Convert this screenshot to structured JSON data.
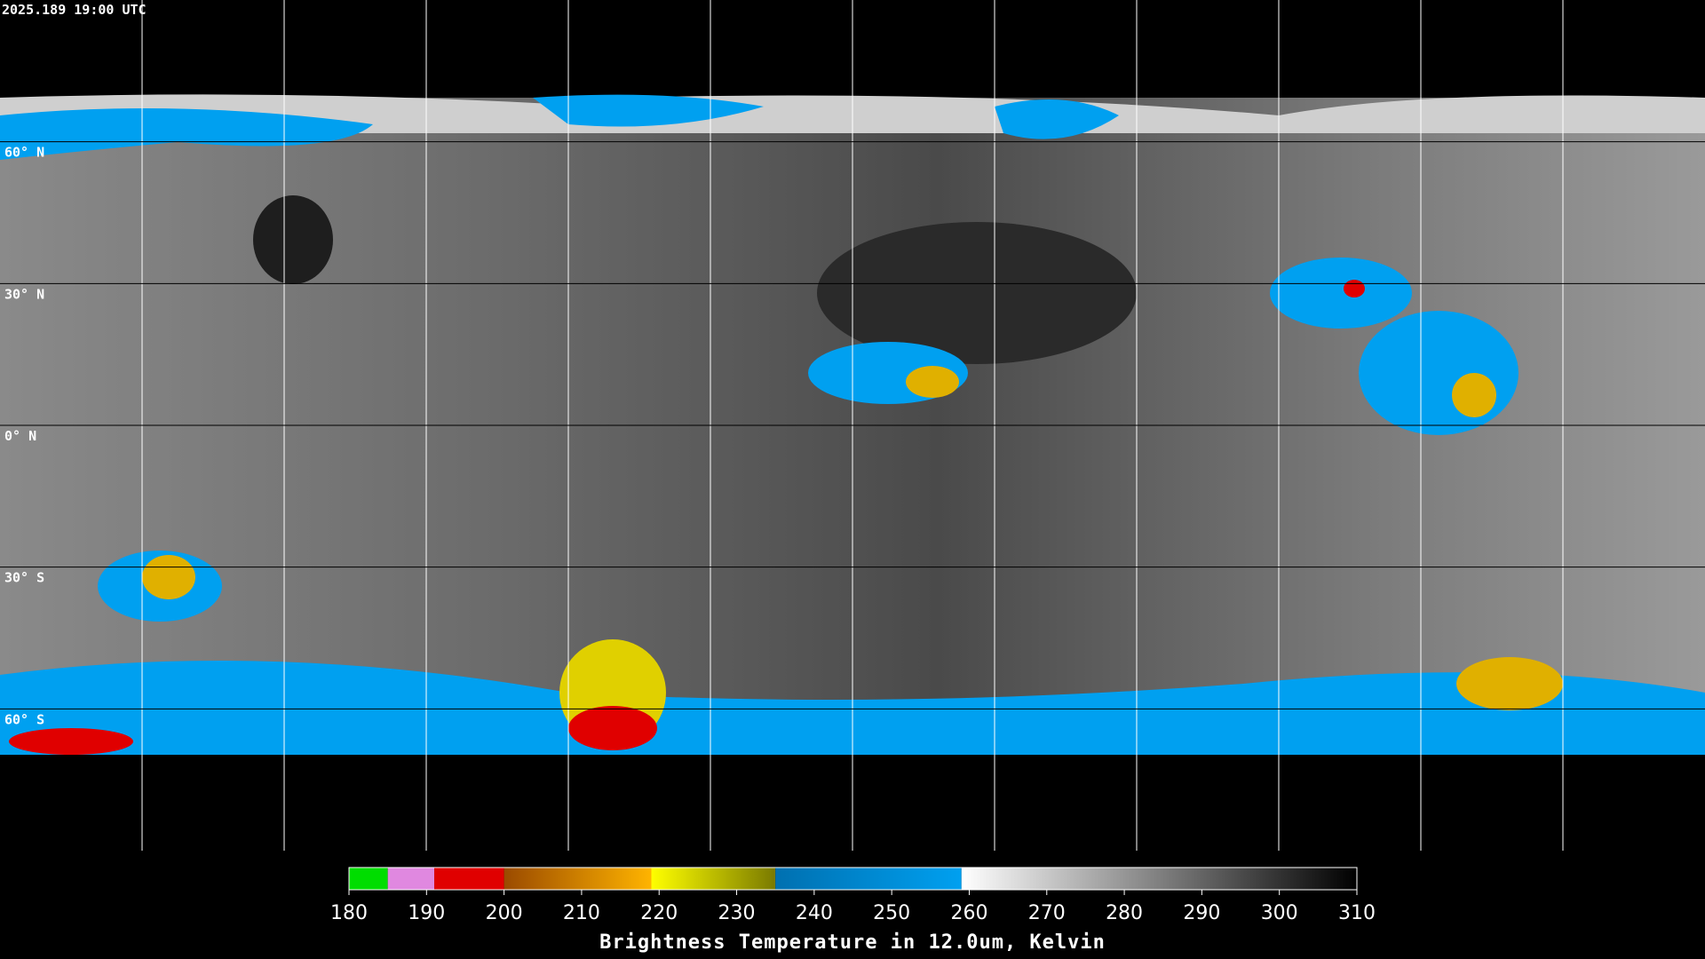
{
  "header": {
    "timestamp": "2025.189 19:00 UTC"
  },
  "map": {
    "lat_labels": [
      "60° N",
      "30° N",
      "0° N",
      "30° S",
      "60° S"
    ]
  },
  "colorbar": {
    "title": "Brightness Temperature in 12.0um, Kelvin",
    "range": [
      180,
      310
    ],
    "ticks": [
      180,
      190,
      200,
      210,
      220,
      230,
      240,
      250,
      260,
      270,
      280,
      290,
      300,
      310
    ],
    "segments": [
      {
        "from": 180,
        "to": 185,
        "color": "#00dd00",
        "color_end": "#00dd00"
      },
      {
        "from": 185,
        "to": 191,
        "color": "#e088e0",
        "color_end": "#e088e0"
      },
      {
        "from": 191,
        "to": 200,
        "color": "#e00000",
        "color_end": "#e00000"
      },
      {
        "from": 200,
        "to": 219,
        "color": "#9a4a00",
        "color_end": "#ffb400"
      },
      {
        "from": 219,
        "to": 235,
        "color": "#ffff00",
        "color_end": "#7a7a00"
      },
      {
        "from": 235,
        "to": 259,
        "color": "#0070b0",
        "color_end": "#00a0f0"
      },
      {
        "from": 259,
        "to": 310,
        "color": "#ffffff",
        "color_end": "#000000"
      }
    ]
  }
}
